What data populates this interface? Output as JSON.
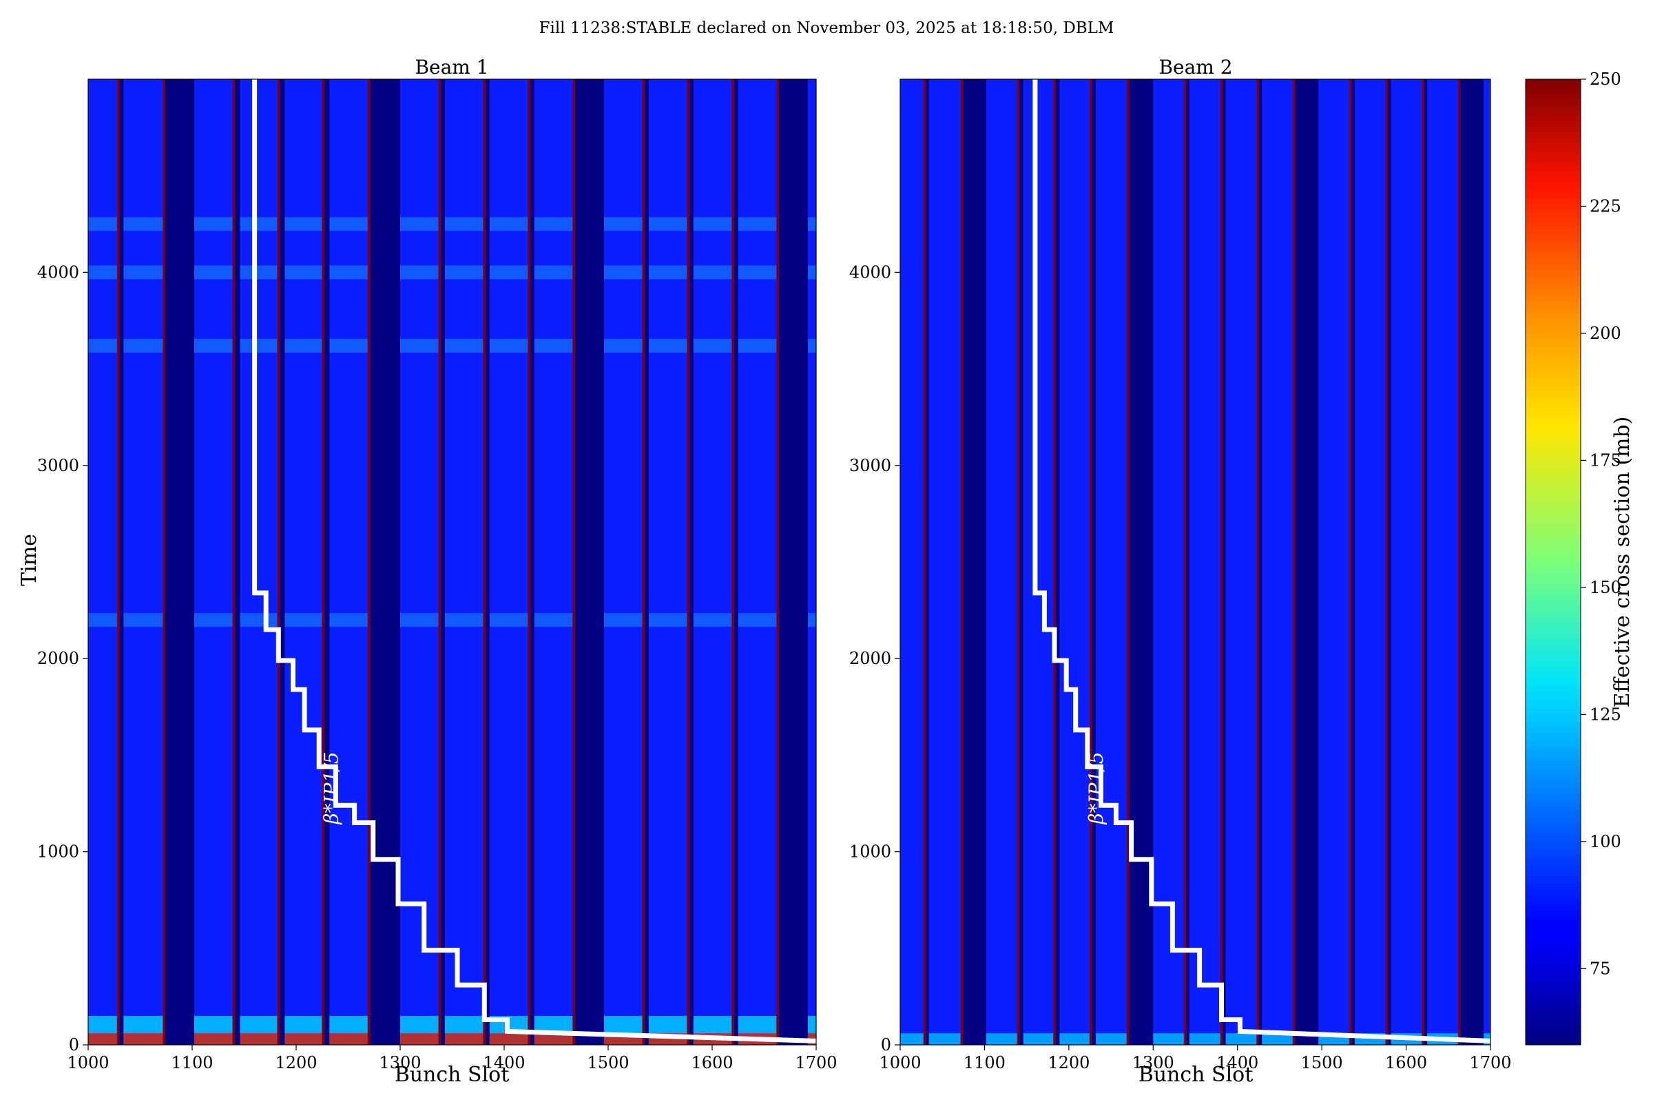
{
  "figure": {
    "suptitle": "Fill 11238:STABLE declared on November 03, 2025 at 18:18:50, DBLM"
  },
  "chart_data": [
    {
      "type": "heatmap",
      "title": "Beam 1",
      "xlabel": "Bunch Slot",
      "ylabel": "Time",
      "xlim": [
        1000,
        1700
      ],
      "ylim": [
        0,
        5000
      ],
      "xticks": [
        1000,
        1100,
        1200,
        1300,
        1400,
        1500,
        1600,
        1700
      ],
      "yticks": [
        0,
        1000,
        2000,
        3000,
        4000
      ],
      "filled_bands": [
        [
          1000,
          1028
        ],
        [
          1034,
          1072
        ],
        [
          1102,
          1139
        ],
        [
          1146,
          1182
        ],
        [
          1189,
          1225
        ],
        [
          1232,
          1269
        ],
        [
          1300,
          1337
        ],
        [
          1343,
          1380
        ],
        [
          1386,
          1423
        ],
        [
          1429,
          1466
        ],
        [
          1496,
          1533
        ],
        [
          1539,
          1576
        ],
        [
          1582,
          1619
        ],
        [
          1625,
          1662
        ],
        [
          1692,
          1700
        ]
      ],
      "band_edges": [
        1029,
        1073,
        1140,
        1183,
        1226,
        1270,
        1338,
        1381,
        1424,
        1467,
        1534,
        1577,
        1620,
        1663
      ],
      "features": {
        "band_bright_rows": [
          3620,
          4000,
          4250,
          2200
        ],
        "bottom_hot_until": 150
      },
      "overlay_line": {
        "label": "β*IP1/5",
        "color": "#ffffff",
        "x": [
          1160,
          1160,
          1171,
          1171,
          1183,
          1183,
          1197,
          1197,
          1208,
          1208,
          1222,
          1222,
          1238,
          1238,
          1256,
          1256,
          1274,
          1274,
          1298,
          1298,
          1323,
          1323,
          1355,
          1355,
          1381,
          1381,
          1403,
          1403,
          1700
        ],
        "y": [
          5000,
          2340,
          2340,
          2150,
          2150,
          1990,
          1990,
          1840,
          1840,
          1630,
          1630,
          1440,
          1440,
          1240,
          1240,
          1150,
          1150,
          960,
          960,
          730,
          730,
          490,
          490,
          310,
          310,
          130,
          130,
          70,
          20
        ]
      }
    },
    {
      "type": "heatmap",
      "title": "Beam 2",
      "xlabel": "Bunch Slot",
      "ylabel": "",
      "xlim": [
        1000,
        1700
      ],
      "ylim": [
        0,
        5000
      ],
      "xticks": [
        1000,
        1100,
        1200,
        1300,
        1400,
        1500,
        1600,
        1700
      ],
      "yticks": [
        0,
        1000,
        2000,
        3000,
        4000
      ],
      "filled_bands": [
        [
          1000,
          1028
        ],
        [
          1034,
          1072
        ],
        [
          1102,
          1139
        ],
        [
          1146,
          1182
        ],
        [
          1189,
          1225
        ],
        [
          1232,
          1269
        ],
        [
          1300,
          1337
        ],
        [
          1343,
          1380
        ],
        [
          1386,
          1423
        ],
        [
          1429,
          1466
        ],
        [
          1496,
          1533
        ],
        [
          1539,
          1576
        ],
        [
          1582,
          1619
        ],
        [
          1625,
          1662
        ],
        [
          1692,
          1700
        ]
      ],
      "band_edges": [
        1029,
        1073,
        1140,
        1183,
        1226,
        1270,
        1338,
        1381,
        1424,
        1467,
        1534,
        1577,
        1620,
        1663
      ],
      "features": {
        "band_bright_rows": [],
        "bottom_hot_until": 60
      },
      "overlay_line": {
        "label": "β*IP1/5",
        "color": "#ffffff",
        "x": [
          1160,
          1160,
          1171,
          1171,
          1183,
          1183,
          1197,
          1197,
          1208,
          1208,
          1222,
          1222,
          1238,
          1238,
          1256,
          1256,
          1274,
          1274,
          1298,
          1298,
          1323,
          1323,
          1355,
          1355,
          1381,
          1381,
          1403,
          1403,
          1700
        ],
        "y": [
          5000,
          2340,
          2340,
          2150,
          2150,
          1990,
          1990,
          1840,
          1840,
          1630,
          1630,
          1440,
          1440,
          1240,
          1240,
          1150,
          1150,
          960,
          960,
          730,
          730,
          490,
          490,
          310,
          310,
          130,
          130,
          70,
          20
        ]
      }
    }
  ],
  "colorbar": {
    "label": "Effective cross section (mb)",
    "colormap": "jet",
    "range": [
      60,
      250
    ],
    "ticks": [
      75,
      100,
      125,
      150,
      175,
      200,
      225,
      250
    ]
  },
  "colors": {
    "empty_slot": "#000080",
    "band_base": "#0a1eff",
    "edge_hot": "#9a0000",
    "overlay": "#ffffff"
  }
}
